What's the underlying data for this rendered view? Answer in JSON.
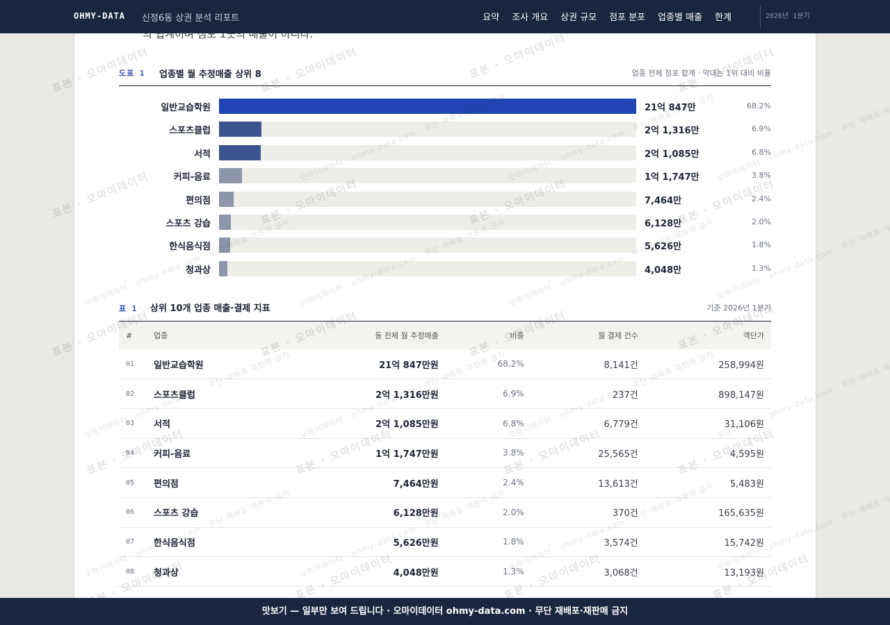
{
  "topbar": {
    "brand": "OHMY-DATA",
    "report_title": "신정6동 상권 분석 리포트",
    "nav": [
      "요약",
      "조사 개요",
      "상권 규모",
      "점포 분포",
      "업종별 매출",
      "한계"
    ],
    "period": "2026년 1분기"
  },
  "cut_text": "의 합계이며 점포 1곳의 매출이 아니다.",
  "figure": {
    "tag": "도표 1",
    "title": "업종별 월 추정매출 상위 8",
    "note": "업종 전체 점포 합계 · 막대는 1위 대비 비율",
    "colors": {
      "top": "#1f45b5",
      "high": "#3c5590",
      "low": "#8c95aa",
      "track": "#efede7"
    }
  },
  "chart_data": {
    "type": "bar",
    "orientation": "horizontal",
    "categories": [
      "일반교습학원",
      "스포츠클럽",
      "서적",
      "커피-음료",
      "편의점",
      "스포츠 강습",
      "한식음식점",
      "청과상"
    ],
    "values": [
      210847,
      21316,
      21085,
      11747,
      7464,
      6128,
      5626,
      4048
    ],
    "value_unit": "만원",
    "value_labels": [
      "21억 847만",
      "2억 1,316만",
      "2억 1,085만",
      "1억 1,747만",
      "7,464만",
      "6,128만",
      "5,626만",
      "4,048만"
    ],
    "shares": [
      "68.2%",
      "6.9%",
      "6.8%",
      "3.8%",
      "2.4%",
      "2.0%",
      "1.8%",
      "1.3%"
    ],
    "title": "업종별 월 추정매출 상위 8",
    "xlim": [
      0,
      210847
    ]
  },
  "table": {
    "tag": "표 1",
    "title": "상위 10개 업종 매출·결제 지표",
    "note": "기준 2026년 1분기",
    "columns": [
      "#",
      "업종",
      "동 전체 월 추정매출",
      "비중",
      "월 결제 건수",
      "객단가"
    ],
    "rows": [
      {
        "no": "01",
        "name": "일반교습학원",
        "sales": "21억 847만원",
        "share": "68.2%",
        "count": "8,141건",
        "avg": "258,994원"
      },
      {
        "no": "02",
        "name": "스포츠클럽",
        "sales": "2억 1,316만원",
        "share": "6.9%",
        "count": "237건",
        "avg": "898,147원"
      },
      {
        "no": "03",
        "name": "서적",
        "sales": "2억 1,085만원",
        "share": "6.8%",
        "count": "6,779건",
        "avg": "31,106원"
      },
      {
        "no": "04",
        "name": "커피-음료",
        "sales": "1억 1,747만원",
        "share": "3.8%",
        "count": "25,565건",
        "avg": "4,595원"
      },
      {
        "no": "05",
        "name": "편의점",
        "sales": "7,464만원",
        "share": "2.4%",
        "count": "13,613건",
        "avg": "5,483원"
      },
      {
        "no": "06",
        "name": "스포츠 강습",
        "sales": "6,128만원",
        "share": "2.0%",
        "count": "370건",
        "avg": "165,635원"
      },
      {
        "no": "07",
        "name": "한식음식점",
        "sales": "5,626만원",
        "share": "1.8%",
        "count": "3,574건",
        "avg": "15,742원"
      },
      {
        "no": "08",
        "name": "청과상",
        "sales": "4,048만원",
        "share": "1.3%",
        "count": "3,068건",
        "avg": "13,193원"
      }
    ]
  },
  "footer": "맛보기 — 일부만 보여 드립니다 · 오마이데이터 ohmy-data.com · 무단 재배포·재판매 금지",
  "watermark": {
    "main": "표본 · 오마이데이터",
    "sub": "오마이데이터 · ohmy-data.com · 무단 재배포·재판매 금지"
  }
}
